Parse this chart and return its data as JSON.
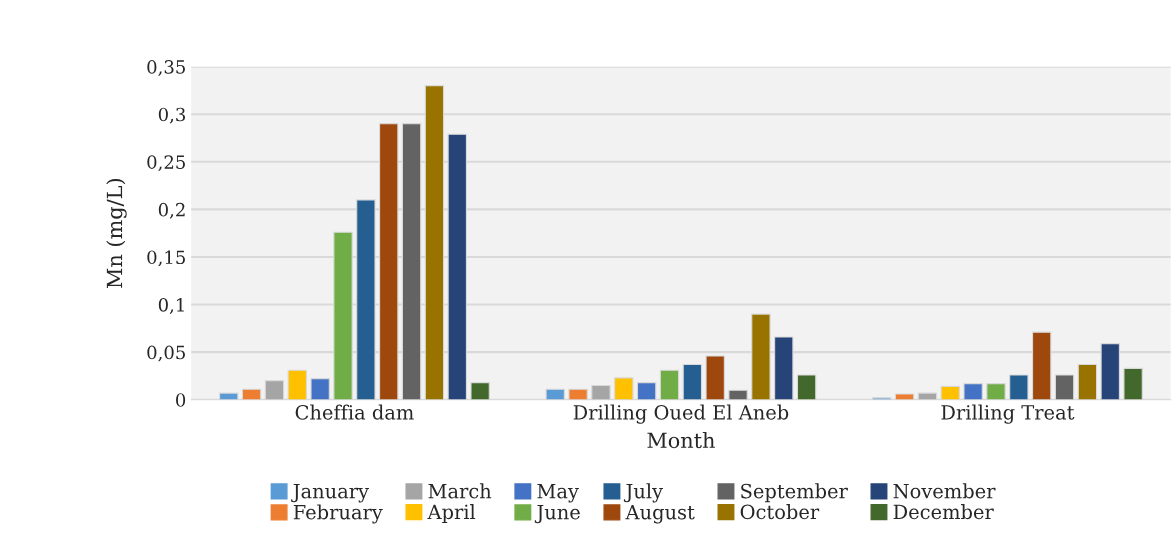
{
  "chart_data": {
    "type": "bar",
    "xlabel": "Month",
    "ylabel": "Mn (mg/L)",
    "categories": [
      "Cheffia dam",
      "Drilling Oued El Aneb",
      "Drilling Treat"
    ],
    "series": [
      {
        "name": "January",
        "color": "#5b9bd5",
        "values": [
          0.007,
          0.011,
          0.002
        ]
      },
      {
        "name": "February",
        "color": "#ed7d31",
        "values": [
          0.011,
          0.011,
          0.006
        ]
      },
      {
        "name": "March",
        "color": "#a5a5a5",
        "values": [
          0.02,
          0.015,
          0.007
        ]
      },
      {
        "name": "April",
        "color": "#ffc000",
        "values": [
          0.031,
          0.023,
          0.014
        ]
      },
      {
        "name": "May",
        "color": "#4472c4",
        "values": [
          0.022,
          0.018,
          0.017
        ]
      },
      {
        "name": "June",
        "color": "#70ad47",
        "values": [
          0.176,
          0.031,
          0.017
        ]
      },
      {
        "name": "July",
        "color": "#255e91",
        "values": [
          0.21,
          0.037,
          0.026
        ]
      },
      {
        "name": "August",
        "color": "#9e480e",
        "values": [
          0.29,
          0.046,
          0.071
        ]
      },
      {
        "name": "September",
        "color": "#636363",
        "values": [
          0.29,
          0.01,
          0.026
        ]
      },
      {
        "name": "October",
        "color": "#997300",
        "values": [
          0.33,
          0.09,
          0.037
        ]
      },
      {
        "name": "November",
        "color": "#264478",
        "values": [
          0.279,
          0.066,
          0.059
        ]
      },
      {
        "name": "December",
        "color": "#43682b",
        "values": [
          0.018,
          0.026,
          0.033
        ]
      }
    ],
    "ylim": [
      0,
      0.35
    ],
    "yticks": [
      0,
      {
        "value": 0.05,
        "label": "0,05"
      },
      {
        "value": 0.1,
        "label": "0,1"
      },
      {
        "value": 0.15,
        "label": "0,15"
      },
      {
        "value": 0.2,
        "label": "0,2"
      },
      {
        "value": 0.25,
        "label": "0,25"
      },
      {
        "value": 0.3,
        "label": "0,3"
      },
      {
        "value": 0.35,
        "label": "0,35"
      }
    ],
    "grid": "y",
    "legend": "bottom"
  }
}
